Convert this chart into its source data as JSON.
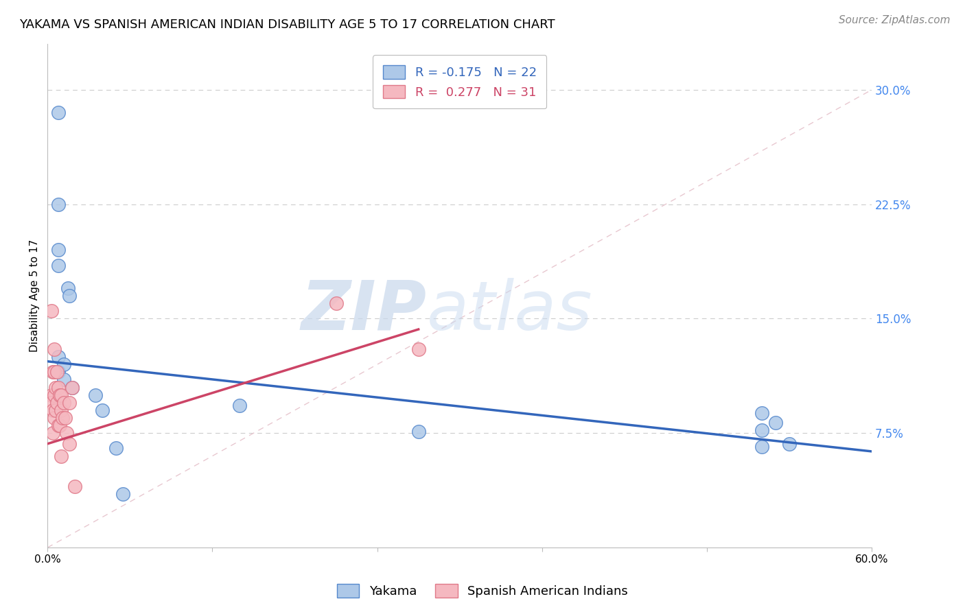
{
  "title": "YAKAMA VS SPANISH AMERICAN INDIAN DISABILITY AGE 5 TO 17 CORRELATION CHART",
  "source": "Source: ZipAtlas.com",
  "ylabel": "Disability Age 5 to 17",
  "xlim": [
    0.0,
    0.6
  ],
  "ylim": [
    0.0,
    0.33
  ],
  "xticks": [
    0.0,
    0.12,
    0.24,
    0.36,
    0.48,
    0.6
  ],
  "xtick_labels": [
    "0.0%",
    "",
    "",
    "",
    "",
    "60.0%"
  ],
  "ytick_labels_right": [
    "7.5%",
    "15.0%",
    "22.5%",
    "30.0%"
  ],
  "yticks_right": [
    0.075,
    0.15,
    0.225,
    0.3
  ],
  "blue_color": "#adc8e8",
  "blue_edge_color": "#5588cc",
  "pink_color": "#f5b8c0",
  "pink_edge_color": "#e07888",
  "legend_blue_R": "-0.175",
  "legend_blue_N": "22",
  "legend_pink_R": "0.277",
  "legend_pink_N": "31",
  "blue_scatter_x": [
    0.008,
    0.008,
    0.008,
    0.008,
    0.008,
    0.008,
    0.012,
    0.012,
    0.015,
    0.016,
    0.018,
    0.035,
    0.04,
    0.05,
    0.055,
    0.14,
    0.27,
    0.52,
    0.52,
    0.52,
    0.53,
    0.54
  ],
  "blue_scatter_y": [
    0.285,
    0.225,
    0.195,
    0.185,
    0.125,
    0.115,
    0.12,
    0.11,
    0.17,
    0.165,
    0.105,
    0.1,
    0.09,
    0.065,
    0.035,
    0.093,
    0.076,
    0.088,
    0.077,
    0.066,
    0.082,
    0.068
  ],
  "pink_scatter_x": [
    0.003,
    0.003,
    0.003,
    0.004,
    0.004,
    0.004,
    0.005,
    0.005,
    0.005,
    0.005,
    0.006,
    0.006,
    0.007,
    0.007,
    0.008,
    0.008,
    0.009,
    0.009,
    0.01,
    0.01,
    0.01,
    0.011,
    0.012,
    0.013,
    0.014,
    0.016,
    0.016,
    0.018,
    0.02,
    0.21,
    0.27
  ],
  "pink_scatter_y": [
    0.155,
    0.1,
    0.095,
    0.115,
    0.09,
    0.075,
    0.13,
    0.115,
    0.1,
    0.085,
    0.105,
    0.09,
    0.115,
    0.095,
    0.105,
    0.08,
    0.1,
    0.08,
    0.1,
    0.09,
    0.06,
    0.085,
    0.095,
    0.085,
    0.075,
    0.095,
    0.068,
    0.105,
    0.04,
    0.16,
    0.13
  ],
  "blue_trend_x": [
    0.0,
    0.6
  ],
  "blue_trend_y": [
    0.122,
    0.063
  ],
  "pink_trend_x": [
    0.0,
    0.27
  ],
  "pink_trend_y": [
    0.068,
    0.143
  ],
  "ref_line_x": [
    0.0,
    0.6
  ],
  "ref_line_y": [
    0.0,
    0.3
  ],
  "watermark_zip": "ZIP",
  "watermark_atlas": "atlas",
  "title_fontsize": 13,
  "axis_label_fontsize": 11,
  "tick_fontsize": 11,
  "legend_fontsize": 13,
  "source_fontsize": 11
}
